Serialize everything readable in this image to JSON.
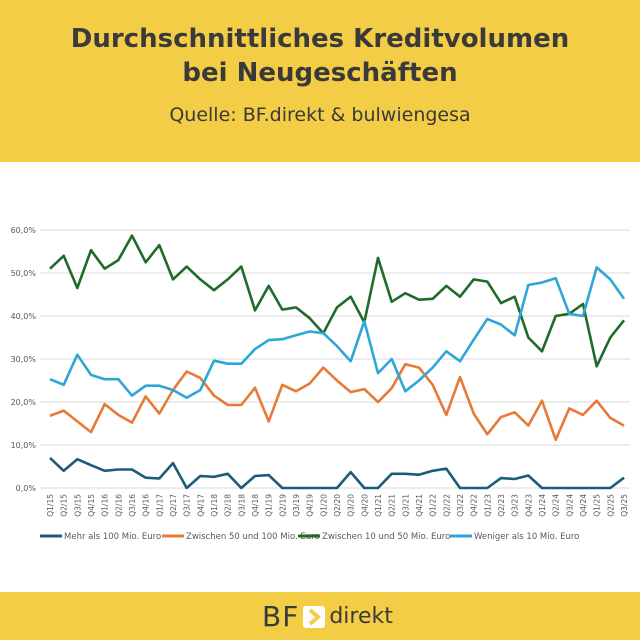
{
  "header": {
    "title_line1": "Durchschnittliches Kreditvolumen",
    "title_line2": "bei Neugeschäften",
    "source": "Quelle: BF.direkt & bulwiengesa"
  },
  "footer": {
    "logo_text": "BF direkt",
    "logo_bf": "BF",
    "logo_direkt": "direkt"
  },
  "colors": {
    "background": "#f4cd46",
    "navy": "#1a5c7a",
    "orange": "#e87a38",
    "green": "#1e6b2a",
    "blue": "#2ea6d6"
  },
  "chart_data": {
    "type": "line",
    "title": "Durchschnittliches Kreditvolumen bei Neugeschäften",
    "xlabel": "",
    "ylabel": "",
    "ylim": [
      0,
      60
    ],
    "yticks": [
      "0,0%",
      "10,0%",
      "20,0%",
      "30,0%",
      "40,0%",
      "50,0%",
      "60,0%"
    ],
    "grid": true,
    "legend": "bottom",
    "categories": [
      "Q1/15",
      "Q2/15",
      "Q3/15",
      "Q4/15",
      "Q1/16",
      "Q2/16",
      "Q3/16",
      "Q4/16",
      "Q1/17",
      "Q2/17",
      "Q3/17",
      "Q4/17",
      "Q1/18",
      "Q2/18",
      "Q3/18",
      "Q4/18",
      "Q1/19",
      "Q2/19",
      "Q3/19",
      "Q4/19",
      "Q1/20",
      "Q2/20",
      "Q3/20",
      "Q4/20",
      "Q1/21",
      "Q2/21",
      "Q3/21",
      "Q4/21",
      "Q1/22",
      "Q2/22",
      "Q3/22",
      "Q4/22",
      "Q1/23",
      "Q2/23",
      "Q3/23",
      "Q4/23",
      "Q1/24",
      "Q2/24",
      "Q3/24",
      "Q4/24",
      "Q1/25",
      "Q2/25",
      "Q3/25"
    ],
    "series": [
      {
        "name": "Mehr als 100 Mio. Euro",
        "color": "#1a5c7a",
        "values": [
          7,
          4,
          6.7,
          5.3,
          4,
          4.3,
          4.3,
          2.4,
          2.2,
          5.8,
          0,
          2.8,
          2.6,
          3.3,
          0,
          2.8,
          3,
          0,
          0,
          0,
          0,
          0,
          3.7,
          0,
          0,
          3.3,
          3.3,
          3.1,
          4,
          4.5,
          0,
          0,
          0,
          2.3,
          2.1,
          2.9,
          0,
          0,
          0,
          0,
          0,
          0,
          2.4
        ]
      },
      {
        "name": "Zwischen 50 und 100 Mio. Euro",
        "color": "#e87a38",
        "values": [
          16.8,
          18,
          15.5,
          13,
          19.5,
          17,
          15.2,
          21.3,
          17.3,
          22.8,
          27.1,
          25.6,
          21.5,
          19.3,
          19.3,
          23.3,
          15.5,
          24,
          22.5,
          24.3,
          28,
          25,
          22.3,
          23,
          20,
          23.2,
          28.8,
          28,
          24,
          17,
          25.8,
          17.3,
          12.5,
          16.5,
          17.6,
          14.5,
          20.3,
          11.2,
          18.5,
          17,
          20.3,
          16.3,
          14.5
        ]
      },
      {
        "name": "Zwischen 10 und 50 Mio. Euro",
        "color": "#1e6b2a",
        "values": [
          51,
          54,
          46.5,
          55.3,
          51,
          53,
          58.7,
          52.5,
          56.5,
          48.5,
          51.5,
          48.5,
          46,
          48.5,
          51.5,
          41.3,
          47,
          41.5,
          42,
          39.5,
          36,
          42,
          44.5,
          38.5,
          53.5,
          43.3,
          45.3,
          43.8,
          44,
          47,
          44.5,
          48.5,
          48,
          43,
          44.5,
          35,
          31.8,
          40,
          40.5,
          42.8,
          28.3,
          35,
          39
        ]
      },
      {
        "name": "Weniger als 10 Mio. Euro",
        "color": "#2ea6d6",
        "values": [
          25.3,
          24,
          31,
          26.3,
          25.3,
          25.3,
          21.5,
          23.8,
          23.8,
          22.8,
          21,
          22.8,
          29.6,
          28.9,
          28.9,
          32.3,
          34.4,
          34.6,
          35.5,
          36.4,
          36,
          33,
          29.5,
          38.8,
          26.7,
          30,
          22.5,
          25,
          28,
          31.8,
          29.5,
          34.5,
          39.3,
          38,
          35.5,
          47.2,
          47.8,
          48.8,
          40.5,
          40,
          51.3,
          48.5,
          44
        ]
      }
    ]
  }
}
